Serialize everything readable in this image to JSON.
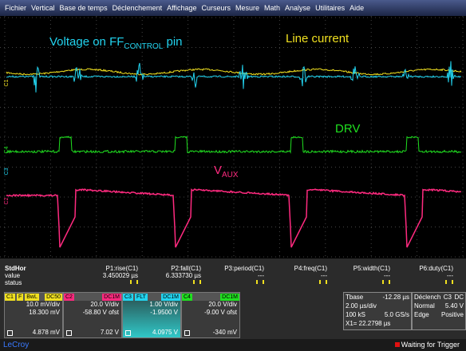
{
  "menu": [
    "Fichier",
    "Vertical",
    "Base de temps",
    "Déclenchement",
    "Affichage",
    "Curseurs",
    "Mesure",
    "Math",
    "Analyse",
    "Utilitaires",
    "Aide"
  ],
  "annotations": {
    "voltage": {
      "text": "Voltage on FF",
      "sub": "CONTROL",
      "suffix": " pin"
    },
    "line_current": "Line current",
    "drv": "DRV",
    "vaux": {
      "text": "V",
      "sub": "AUX"
    }
  },
  "channel_markers": [
    "C1",
    "C4",
    "C3",
    "C2"
  ],
  "measurements": {
    "row_labels": [
      "StdHor",
      "value",
      "status"
    ],
    "params": [
      {
        "name": "P1:rise(C1)",
        "value": "3.450029 µs"
      },
      {
        "name": "P2:fall(C1)",
        "value": "6.333730 µs"
      },
      {
        "name": "P3:period(C1)",
        "value": "---"
      },
      {
        "name": "P4:freq(C1)",
        "value": "---"
      },
      {
        "name": "P5:width(C1)",
        "value": "---"
      },
      {
        "name": "P6:duty(C1)",
        "value": "---"
      }
    ]
  },
  "channels": [
    {
      "id": "C1",
      "tags": [
        "F",
        "BwL",
        "DC50"
      ],
      "vdiv": "10.0 mV/div",
      "offset": "18.300 mV",
      "reading": "4.878 mV"
    },
    {
      "id": "C2",
      "tags": [
        "DC1M"
      ],
      "vdiv": "20.0 V/div",
      "offset": "-58.80 V ofst",
      "reading": "7.02 V"
    },
    {
      "id": "C3",
      "tags": [
        "FLT",
        "DC1M"
      ],
      "vdiv": "1.00 V/div",
      "offset": "-1.9500 V",
      "reading": "4.0975 V"
    },
    {
      "id": "C4",
      "tags": [
        "DC1M"
      ],
      "vdiv": "20.0 V/div",
      "offset": "-9.00 V ofst",
      "reading": "-340 mV"
    }
  ],
  "timebase": {
    "label": "Tbase",
    "delay": "-12.28 µs",
    "tdiv": "2.00 µs/div",
    "samples": "100 kS",
    "rate": "5.0 GS/s",
    "cursor": "X1= 22.2798 µs"
  },
  "trigger": {
    "label": "Déclench",
    "source": "C3",
    "coupling": "DC",
    "mode": "Normal",
    "level": "5.40 V",
    "kind": "Edge",
    "slope": "Positive"
  },
  "status": {
    "brand": "LeCroy",
    "state": "Waiting for Trigger"
  }
}
